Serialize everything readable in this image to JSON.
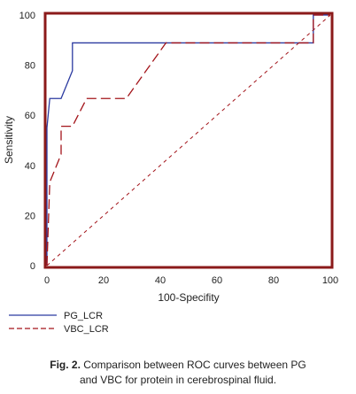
{
  "chart_data": {
    "type": "line",
    "xlabel": "100-Specifity",
    "ylabel": "Sensitivity",
    "xlim": [
      0,
      100
    ],
    "ylim": [
      0,
      100
    ],
    "xticks": [
      0,
      20,
      40,
      60,
      80,
      100
    ],
    "yticks": [
      0,
      20,
      40,
      60,
      80,
      100
    ],
    "grid": false,
    "legend_position": "bottom-left, below plot",
    "frame_color": "#8b1a1a",
    "series": [
      {
        "name": "PG_LCR",
        "color": "#2b3aa0",
        "style": "solid",
        "points": [
          [
            0,
            0
          ],
          [
            0,
            55
          ],
          [
            1,
            66.7
          ],
          [
            5,
            66.7
          ],
          [
            9,
            77.8
          ],
          [
            9,
            88.9
          ],
          [
            94,
            88.9
          ],
          [
            94,
            100
          ],
          [
            100,
            100
          ]
        ]
      },
      {
        "name": "VBC_LCR",
        "color": "#a3141a",
        "style": "dashed",
        "points": [
          [
            0,
            0
          ],
          [
            1,
            33.3
          ],
          [
            5,
            44.4
          ],
          [
            5,
            55.6
          ],
          [
            9,
            55.6
          ],
          [
            14,
            66.7
          ],
          [
            28,
            66.7
          ],
          [
            42,
            88.9
          ],
          [
            94,
            88.9
          ],
          [
            94,
            100
          ],
          [
            100,
            100
          ]
        ]
      },
      {
        "name": "reference",
        "color": "#a3141a",
        "style": "dotted",
        "points": [
          [
            0,
            0
          ],
          [
            100,
            100
          ]
        ]
      }
    ]
  },
  "caption": {
    "label": "Fig. 2.",
    "text": " Comparison between ROC curves between PG",
    "line2": "and VBC for protein in cerebrospinal fluid."
  }
}
